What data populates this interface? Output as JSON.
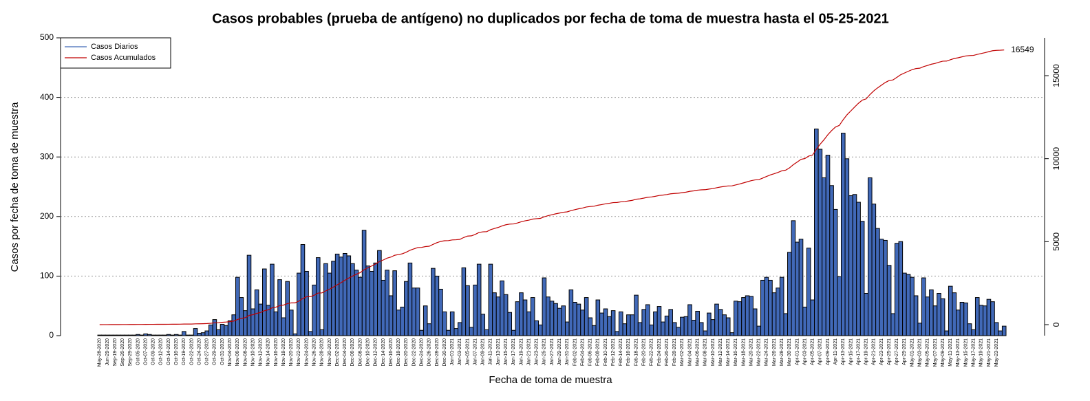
{
  "chart_data": {
    "type": "bar",
    "title": "Casos probables (prueba de antígeno) no duplicados por fecha de toma de muestra hasta el 05-25-2021",
    "xlabel": "Fecha de toma de muestra",
    "ylabel": "Casos por fecha de toma de muestra",
    "categories": [
      "May-28-2020",
      null,
      "Jun-29-2020",
      null,
      "Sep-19-2020",
      null,
      "Sep-26-2020",
      null,
      "Sep-29-2020",
      null,
      "Oct-05-2020",
      null,
      "Oct-07-2020",
      null,
      "Oct-09-2020",
      null,
      "Oct-12-2020",
      null,
      "Oct-14-2020",
      null,
      "Oct-16-2020",
      null,
      "Oct-19-2020",
      null,
      "Oct-22-2020",
      null,
      "Oct-24-2020",
      null,
      "Oct-27-2020",
      null,
      "Oct-29-2020",
      null,
      "Oct-31-2020",
      null,
      "Nov-04-2020",
      null,
      "Nov-06-2020",
      null,
      "Nov-08-2020",
      null,
      "Nov-10-2020",
      null,
      "Nov-12-2020",
      null,
      "Nov-14-2020",
      null,
      "Nov-16-2020",
      null,
      "Nov-18-2020",
      null,
      "Nov-20-2020",
      null,
      "Nov-22-2020",
      null,
      "Nov-24-2020",
      null,
      "Nov-26-2020",
      null,
      "Nov-28-2020",
      null,
      "Nov-30-2020",
      null,
      "Dec-02-2020",
      null,
      "Dec-04-2020",
      null,
      "Dec-06-2020",
      null,
      "Dec-08-2020",
      null,
      "Dec-10-2020",
      null,
      "Dec-12-2020",
      null,
      "Dec-14-2020",
      null,
      "Dec-16-2020",
      null,
      "Dec-18-2020",
      null,
      "Dec-20-2020",
      null,
      "Dec-22-2020",
      null,
      "Dec-24-2020",
      null,
      "Dec-26-2020",
      null,
      "Dec-28-2020",
      null,
      "Dec-30-2020",
      null,
      "Jan-01-2021",
      null,
      "Jan-03-2021",
      null,
      "Jan-05-2021",
      null,
      "Jan-07-2021",
      null,
      "Jan-09-2021",
      null,
      "Jan-11-2021",
      null,
      "Jan-13-2021",
      null,
      "Jan-15-2021",
      null,
      "Jan-17-2021",
      null,
      "Jan-19-2021",
      null,
      "Jan-21-2021",
      null,
      "Jan-23-2021",
      null,
      "Jan-25-2021",
      null,
      "Jan-27-2021",
      null,
      "Jan-29-2021",
      null,
      "Jan-31-2021",
      null,
      "Feb-02-2021",
      null,
      "Feb-04-2021",
      null,
      "Feb-06-2021",
      null,
      "Feb-08-2021",
      null,
      "Feb-10-2021",
      null,
      "Feb-12-2021",
      null,
      "Feb-14-2021",
      null,
      "Feb-16-2021",
      null,
      "Feb-18-2021",
      null,
      "Feb-20-2021",
      null,
      "Feb-22-2021",
      null,
      "Feb-24-2021",
      null,
      "Feb-26-2021",
      null,
      "Feb-28-2021",
      null,
      "Mar-02-2021",
      null,
      "Mar-04-2021",
      null,
      "Mar-06-2021",
      null,
      "Mar-08-2021",
      null,
      "Mar-10-2021",
      null,
      "Mar-12-2021",
      null,
      "Mar-14-2021",
      null,
      "Mar-16-2021",
      null,
      "Mar-18-2021",
      null,
      "Mar-20-2021",
      null,
      "Mar-22-2021",
      null,
      "Mar-24-2021",
      null,
      "Mar-26-2021",
      null,
      "Mar-28-2021",
      null,
      "Mar-30-2021",
      null,
      "Apr-01-2021",
      null,
      "Apr-03-2021",
      null,
      "Apr-05-2021",
      null,
      "Apr-07-2021",
      null,
      "Apr-09-2021",
      null,
      "Apr-11-2021",
      null,
      "Apr-13-2021",
      null,
      "Apr-15-2021",
      null,
      "Apr-17-2021",
      null,
      "Apr-19-2021",
      null,
      "Apr-21-2021",
      null,
      "Apr-23-2021",
      null,
      "Apr-25-2021",
      null,
      "Apr-27-2021",
      null,
      "Apr-29-2021",
      null,
      "May-01-2021",
      null,
      "May-03-2021",
      null,
      "May-05-2021",
      null,
      "May-07-2021",
      null,
      "May-09-2021",
      null,
      "May-11-2021",
      null,
      "May-13-2021",
      null,
      "May-15-2021",
      null,
      "May-17-2021",
      null,
      "May-19-2021",
      null,
      "May-21-2021",
      null,
      "May-23-2021",
      null,
      null
    ],
    "series": [
      {
        "name": "Casos Diarios",
        "color": "#4169b8",
        "values": [
          1,
          1,
          1,
          1,
          1,
          1,
          1,
          1,
          1,
          1,
          2,
          1,
          3,
          2,
          1,
          1,
          1,
          1,
          2,
          1,
          2,
          1,
          7,
          1,
          1,
          12,
          4,
          5,
          8,
          18,
          27,
          10,
          19,
          17,
          25,
          35,
          98,
          64,
          42,
          135,
          45,
          77,
          53,
          112,
          51,
          120,
          40,
          94,
          30,
          91,
          43,
          3,
          105,
          153,
          108,
          7,
          85,
          131,
          10,
          121,
          105,
          125,
          137,
          132,
          138,
          134,
          121,
          110,
          98,
          177,
          117,
          108,
          122,
          143,
          93,
          110,
          67,
          109,
          43,
          48,
          91,
          122,
          80,
          80,
          9,
          50,
          20,
          113,
          100,
          78,
          40,
          9,
          40,
          12,
          22,
          114,
          84,
          14,
          85,
          120,
          36,
          10,
          120,
          72,
          65,
          92,
          69,
          39,
          9,
          57,
          72,
          60,
          40,
          64,
          25,
          18,
          97,
          65,
          58,
          54,
          46,
          50,
          23,
          77,
          56,
          53,
          43,
          64,
          30,
          17,
          60,
          38,
          45,
          32,
          42,
          7,
          40,
          20,
          35,
          35,
          68,
          22,
          44,
          52,
          18,
          40,
          49,
          23,
          33,
          44,
          22,
          14,
          31,
          32,
          52,
          26,
          41,
          22,
          8,
          38,
          27,
          53,
          44,
          35,
          30,
          5,
          58,
          57,
          64,
          67,
          66,
          45,
          16,
          93,
          98,
          93,
          72,
          80,
          98,
          37,
          140,
          193,
          157,
          162,
          48,
          147,
          60,
          347,
          313,
          265,
          303,
          252,
          212,
          99,
          340,
          297,
          235,
          237,
          224,
          192,
          71,
          265,
          221,
          180,
          162,
          160,
          118,
          37,
          155,
          158,
          105,
          103,
          98,
          67,
          21,
          97,
          65,
          77,
          50,
          71,
          62,
          8,
          83,
          72,
          43,
          56,
          55,
          20,
          10,
          64,
          51,
          50,
          61,
          57,
          22,
          8,
          16
        ]
      },
      {
        "name": "Casos Acumulados",
        "color": "#c00000",
        "type": "line",
        "axis": "y2",
        "values": [
          1,
          2,
          3,
          4,
          5,
          6,
          7,
          8,
          9,
          10,
          12,
          13,
          16,
          18,
          19,
          20,
          21,
          22,
          24,
          25,
          27,
          28,
          35,
          36,
          37,
          49,
          53,
          58,
          66,
          84,
          111,
          121,
          140,
          157,
          182,
          217,
          315,
          379,
          421,
          556,
          601,
          678,
          731,
          843,
          894,
          1014,
          1054,
          1148,
          1178,
          1269,
          1312,
          1315,
          1420,
          1573,
          1681,
          1688,
          1773,
          1904,
          1914,
          2035,
          2140,
          2265,
          2402,
          2534,
          2672,
          2806,
          2927,
          3037,
          3135,
          3312,
          3429,
          3537,
          3659,
          3802,
          3895,
          4005,
          4072,
          4181,
          4224,
          4272,
          4363,
          4485,
          4565,
          4645,
          4654,
          4704,
          4724,
          4837,
          4937,
          5015,
          5055,
          5064,
          5104,
          5116,
          5138,
          5252,
          5336,
          5350,
          5435,
          5555,
          5591,
          5601,
          5721,
          5793,
          5858,
          5950,
          6019,
          6058,
          6067,
          6124,
          6196,
          6256,
          6296,
          6360,
          6385,
          6403,
          6500,
          6565,
          6623,
          6677,
          6723,
          6773,
          6796,
          6873,
          6929,
          6982,
          7025,
          7089,
          7119,
          7136,
          7196,
          7234,
          7279,
          7311,
          7353,
          7360,
          7400,
          7420,
          7455,
          7490,
          7558,
          7580,
          7624,
          7676,
          7694,
          7734,
          7783,
          7806,
          7839,
          7883,
          7905,
          7919,
          7950,
          7982,
          8034,
          8060,
          8101,
          8123,
          8131,
          8169,
          8196,
          8249,
          8293,
          8328,
          8358,
          8363,
          8421,
          8478,
          8542,
          8609,
          8675,
          8720,
          8736,
          8829,
          8927,
          9020,
          9092,
          9172,
          9270,
          9307,
          9447,
          9640,
          9797,
          9959,
          10007,
          10154,
          10214,
          10561,
          10874,
          11139,
          11442,
          11694,
          11906,
          12005,
          12345,
          12642,
          12877,
          13114,
          13338,
          13530,
          13601,
          13866,
          14087,
          14267,
          14429,
          14589,
          14707,
          14744,
          14899,
          15057,
          15162,
          15265,
          15363,
          15430,
          15451,
          15548,
          15613,
          15690,
          15740,
          15811,
          15873,
          15881,
          15964,
          16036,
          16079,
          16135,
          16190,
          16210,
          16220,
          16284,
          16335,
          16385,
          16446,
          16503,
          16525,
          16533,
          16549
        ]
      }
    ],
    "ylim": [
      0,
      500
    ],
    "yticks": [
      0,
      100,
      200,
      300,
      400,
      500
    ],
    "y2lim": [
      -663,
      17280
    ],
    "y2ticks": [
      0,
      5000,
      10000,
      15000
    ],
    "grid": true,
    "legend": "top-left"
  }
}
